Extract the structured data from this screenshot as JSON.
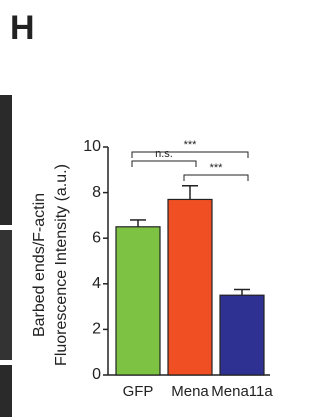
{
  "chart_data": {
    "type": "bar",
    "panel_label": "H",
    "ylabel": [
      "Barbed ends/F-actin",
      "Fluorescence Intensity (a.u.)"
    ],
    "categories": [
      "GFP",
      "Mena",
      "Mena11a"
    ],
    "values": [
      6.5,
      7.7,
      3.5
    ],
    "errors": [
      0.3,
      0.6,
      0.25
    ],
    "colors": [
      "#7dc242",
      "#f04e23",
      "#2e3191"
    ],
    "ylim": [
      0,
      10
    ],
    "yticks": [
      0,
      2,
      4,
      6,
      8,
      10
    ],
    "annotations": [
      {
        "label": "n.s.",
        "from": 0,
        "to": 1
      },
      {
        "label": "***",
        "from": 1,
        "to": 2
      },
      {
        "label": "***",
        "from": 0,
        "to": 2
      }
    ]
  }
}
